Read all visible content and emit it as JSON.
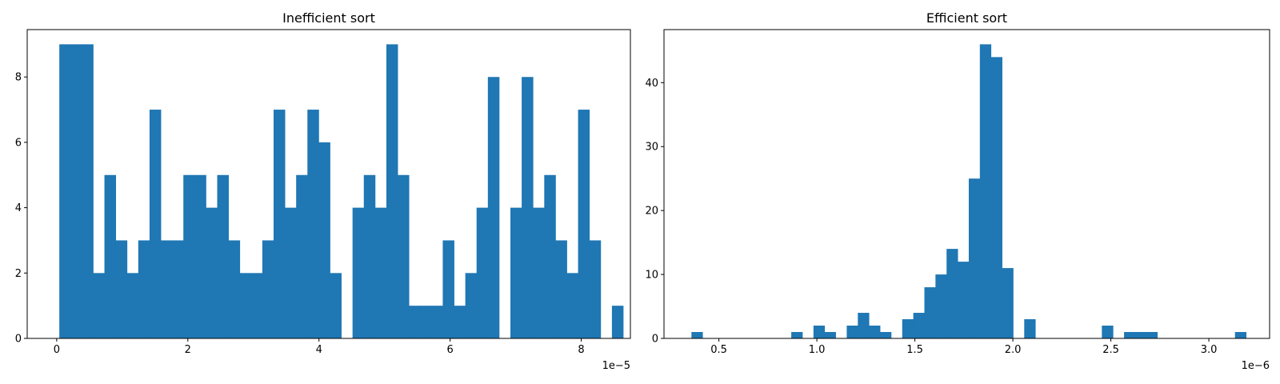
{
  "chart_data": [
    {
      "type": "bar",
      "title": "Inefficient sort",
      "xlabel": "",
      "ylabel": "",
      "x_offset_label": "1e−5",
      "xlim": [
        -0.45,
        8.75
      ],
      "ylim": [
        0,
        9.45
      ],
      "xticks": [
        0,
        2,
        4,
        6,
        8
      ],
      "xtick_labels": [
        "0",
        "2",
        "4",
        "6",
        "8"
      ],
      "yticks": [
        0,
        2,
        4,
        6,
        8
      ],
      "ytick_labels": [
        "0",
        "2",
        "4",
        "6",
        "8"
      ],
      "bin_start": 0.04,
      "bin_width": 0.172,
      "values": [
        9,
        9,
        9,
        2,
        5,
        3,
        2,
        3,
        7,
        3,
        3,
        5,
        5,
        4,
        5,
        3,
        2,
        2,
        3,
        7,
        4,
        5,
        7,
        6,
        2,
        0,
        4,
        5,
        4,
        9,
        5,
        1,
        1,
        1,
        3,
        1,
        2,
        4,
        8,
        0,
        4,
        8,
        4,
        5,
        3,
        2,
        7,
        3,
        0,
        1
      ],
      "color": "#1f77b4",
      "grid": false
    },
    {
      "type": "bar",
      "title": "Efficient sort",
      "xlabel": "",
      "ylabel": "",
      "x_offset_label": "1e−6",
      "xlim": [
        0.22,
        3.31
      ],
      "ylim": [
        0,
        48.3
      ],
      "xticks": [
        0.5,
        1.0,
        1.5,
        2.0,
        2.5,
        3.0
      ],
      "xtick_labels": [
        "0.5",
        "1.0",
        "1.5",
        "2.0",
        "2.5",
        "3.0"
      ],
      "yticks": [
        0,
        10,
        20,
        30,
        40
      ],
      "ytick_labels": [
        "0",
        "10",
        "20",
        "30",
        "40"
      ],
      "bin_start": 0.36,
      "bin_width": 0.0566,
      "values": [
        1,
        0,
        0,
        0,
        0,
        0,
        0,
        0,
        0,
        1,
        0,
        2,
        1,
        0,
        2,
        4,
        2,
        1,
        0,
        3,
        4,
        8,
        10,
        14,
        12,
        25,
        46,
        44,
        11,
        0,
        3,
        0,
        0,
        0,
        0,
        0,
        0,
        2,
        0,
        1,
        1,
        1,
        0,
        0,
        0,
        0,
        0,
        0,
        0,
        1
      ],
      "color": "#1f77b4",
      "grid": false
    }
  ]
}
